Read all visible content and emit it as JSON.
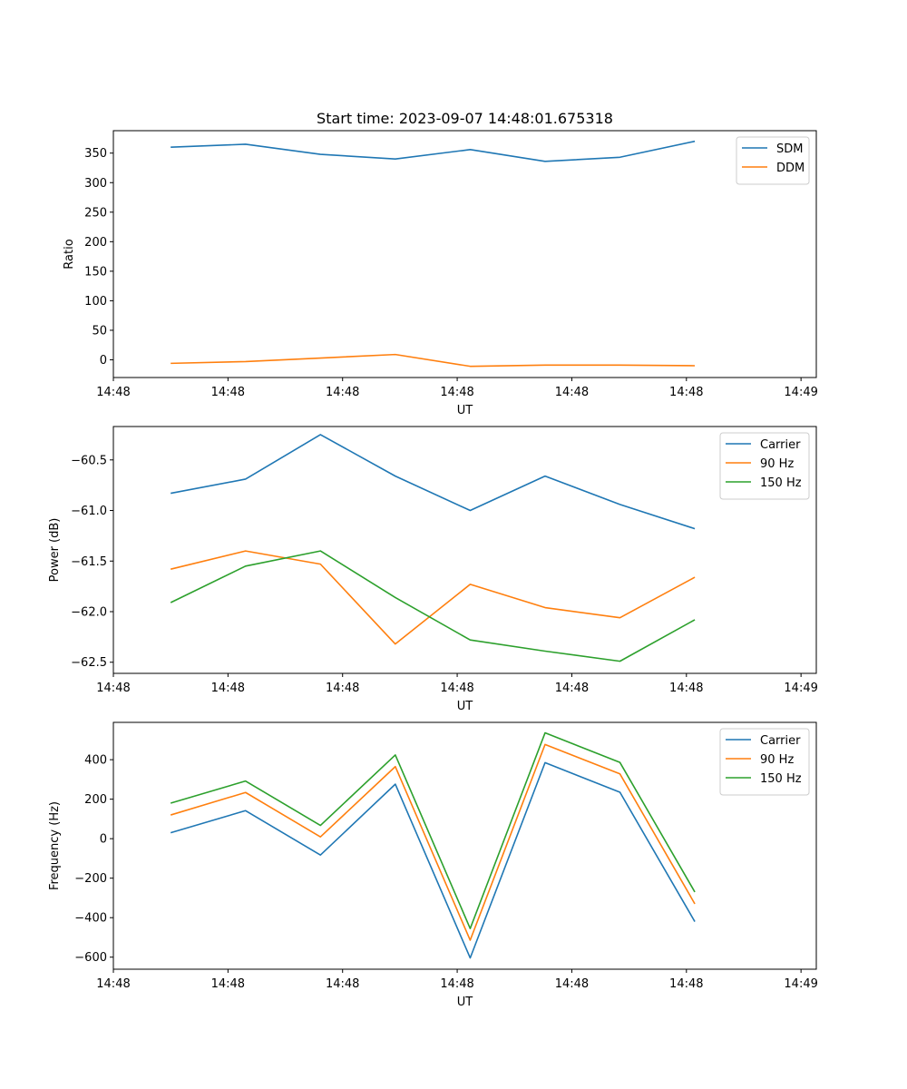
{
  "figure_title": "Start time: 2023-09-07 14:48:01.675318",
  "colors": {
    "blue": "#1f77b4",
    "orange": "#ff7f0e",
    "green": "#2ca02c"
  },
  "chart_data": [
    {
      "type": "line",
      "title": "Start time: 2023-09-07 14:48:01.675318",
      "xlabel": "UT",
      "ylabel": "Ratio",
      "xlim": [
        0,
        9.2
      ],
      "x": [
        0.75,
        1.73,
        2.71,
        3.69,
        4.67,
        5.65,
        6.63,
        7.61
      ],
      "x_ticks": [
        0,
        1.5,
        3,
        4.5,
        6,
        7.5,
        9
      ],
      "x_tick_labels": [
        "14:48",
        "14:48",
        "14:48",
        "14:48",
        "14:48",
        "14:48",
        "14:49"
      ],
      "ylim": [
        -30,
        388
      ],
      "y_ticks": [
        0,
        50,
        100,
        150,
        200,
        250,
        300,
        350
      ],
      "y_tick_labels": [
        "0",
        "50",
        "100",
        "150",
        "200",
        "250",
        "300",
        "350"
      ],
      "legend": "top-right",
      "series": [
        {
          "name": "SDM",
          "color": "#1f77b4",
          "values": [
            360,
            365,
            348,
            340,
            356,
            336,
            343,
            370
          ]
        },
        {
          "name": "DDM",
          "color": "#ff7f0e",
          "values": [
            -6,
            -3,
            3,
            9,
            -11,
            -9,
            -9,
            -10
          ]
        }
      ]
    },
    {
      "type": "line",
      "title": "",
      "xlabel": "UT",
      "ylabel": "Power (dB)",
      "xlim": [
        0,
        9.2
      ],
      "x": [
        0.75,
        1.73,
        2.71,
        3.69,
        4.67,
        5.65,
        6.63,
        7.61
      ],
      "x_ticks": [
        0,
        1.5,
        3,
        4.5,
        6,
        7.5,
        9
      ],
      "x_tick_labels": [
        "14:48",
        "14:48",
        "14:48",
        "14:48",
        "14:48",
        "14:48",
        "14:49"
      ],
      "ylim": [
        -62.61,
        -60.17
      ],
      "y_ticks": [
        -60.5,
        -61.0,
        -61.5,
        -62.0,
        -62.5
      ],
      "y_tick_labels": [
        "−60.5",
        "−61.0",
        "−61.5",
        "−62.0",
        "−62.5"
      ],
      "legend": "top-right",
      "series": [
        {
          "name": "Carrier",
          "color": "#1f77b4",
          "values": [
            -60.83,
            -60.69,
            -60.25,
            -60.66,
            -61.0,
            -60.66,
            -60.94,
            -61.18
          ]
        },
        {
          "name": "90 Hz",
          "color": "#ff7f0e",
          "values": [
            -61.58,
            -61.4,
            -61.53,
            -62.32,
            -61.73,
            -61.96,
            -62.06,
            -61.66
          ]
        },
        {
          "name": "150 Hz",
          "color": "#2ca02c",
          "values": [
            -61.91,
            -61.55,
            -61.4,
            -61.86,
            -62.28,
            -62.39,
            -62.49,
            -62.08
          ]
        }
      ]
    },
    {
      "type": "line",
      "title": "",
      "xlabel": "UT",
      "ylabel": "Frequency (Hz)",
      "xlim": [
        0,
        9.2
      ],
      "x": [
        0.75,
        1.73,
        2.71,
        3.69,
        4.67,
        5.65,
        6.63,
        7.61
      ],
      "x_ticks": [
        0,
        1.5,
        3,
        4.5,
        6,
        7.5,
        9
      ],
      "x_tick_labels": [
        "14:48",
        "14:48",
        "14:48",
        "14:48",
        "14:48",
        "14:48",
        "14:49"
      ],
      "ylim": [
        -661,
        589
      ],
      "y_ticks": [
        -600,
        -400,
        -200,
        0,
        200,
        400
      ],
      "y_tick_labels": [
        "−600",
        "−400",
        "−200",
        "0",
        "200",
        "400"
      ],
      "legend": "top-right",
      "series": [
        {
          "name": "Carrier",
          "color": "#1f77b4",
          "values": [
            30,
            142,
            -83,
            276,
            -604,
            385,
            235,
            -420
          ]
        },
        {
          "name": "90 Hz",
          "color": "#ff7f0e",
          "values": [
            120,
            234,
            9,
            365,
            -514,
            477,
            328,
            -330
          ]
        },
        {
          "name": "150 Hz",
          "color": "#2ca02c",
          "values": [
            180,
            292,
            67,
            424,
            -455,
            536,
            386,
            -270
          ]
        }
      ]
    }
  ]
}
